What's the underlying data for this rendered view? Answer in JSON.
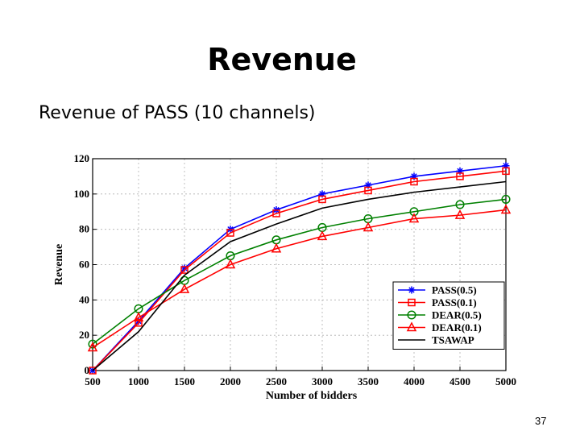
{
  "slide": {
    "title": "Revenue",
    "subtitle": "Revenue of PASS (10 channels)",
    "page_number": "37"
  },
  "chart_data": {
    "type": "line",
    "title": "",
    "xlabel": "Number of bidders",
    "ylabel": "Revenue",
    "x": [
      500,
      1000,
      1500,
      2000,
      2500,
      3000,
      3500,
      4000,
      4500,
      5000
    ],
    "x_tick_labels": [
      "500",
      "1000",
      "1500",
      "2000",
      "2500",
      "3000",
      "3500",
      "4000",
      "4500",
      "5000"
    ],
    "y_ticks": [
      0,
      20,
      40,
      60,
      80,
      100,
      120
    ],
    "ylim": [
      0,
      120
    ],
    "grid": true,
    "legend_position": "bottom-right",
    "series": [
      {
        "name": "PASS(0.5)",
        "color": "#0000ff",
        "marker": "star",
        "values": [
          0,
          28,
          58,
          80,
          91,
          100,
          105,
          110,
          113,
          116
        ]
      },
      {
        "name": "PASS(0.1)",
        "color": "#ff0000",
        "marker": "square",
        "values": [
          0,
          27,
          57,
          78,
          89,
          97,
          102,
          107,
          110,
          113
        ]
      },
      {
        "name": "DEAR(0.5)",
        "color": "#008000",
        "marker": "circle",
        "values": [
          15,
          35,
          51,
          65,
          74,
          81,
          86,
          90,
          94,
          97
        ]
      },
      {
        "name": "DEAR(0.1)",
        "color": "#ff0000",
        "marker": "triangle",
        "values": [
          13,
          30,
          46,
          60,
          69,
          76,
          81,
          86,
          88,
          91
        ]
      },
      {
        "name": "TSAWAP",
        "color": "#000000",
        "marker": "none",
        "values": [
          0,
          22,
          54,
          73,
          83,
          92,
          97,
          101,
          104,
          107
        ]
      }
    ]
  }
}
